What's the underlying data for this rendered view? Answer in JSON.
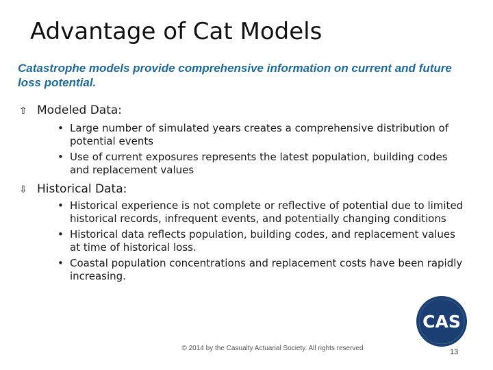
{
  "slide": {
    "title": "Advantage of Cat Models",
    "subtitle": "Catastrophe models provide comprehensive information on current and future loss potential.",
    "sections": [
      {
        "icon": "up-arrow-icon",
        "arrow_glyph": "⇧",
        "heading": "Modeled Data:",
        "bullets": [
          "Large number of simulated years creates a comprehensive distribution of potential events",
          "Use of current exposures represents the latest population, building codes and replacement values"
        ]
      },
      {
        "icon": "down-arrow-icon",
        "arrow_glyph": "⇩",
        "heading": "Historical Data:",
        "bullets": [
          "Historical experience is not complete or reflective of potential due to limited historical records, infrequent events, and potentially changing conditions",
          "Historical data reflects population, building codes, and replacement values at time of historical loss.",
          "Coastal population concentrations and replacement costs have been rapidly increasing."
        ]
      }
    ],
    "bullet_glyph": "•",
    "footer": "© 2014 by the Casualty Actuarial Society. All rights reserved",
    "page_number": "13",
    "logo": {
      "text": "CAS",
      "circle_color": "#1b3f73",
      "text_color": "#ffffff"
    },
    "colors": {
      "subtitle": "#1d6b9e",
      "text": "#1a1a1a"
    }
  }
}
